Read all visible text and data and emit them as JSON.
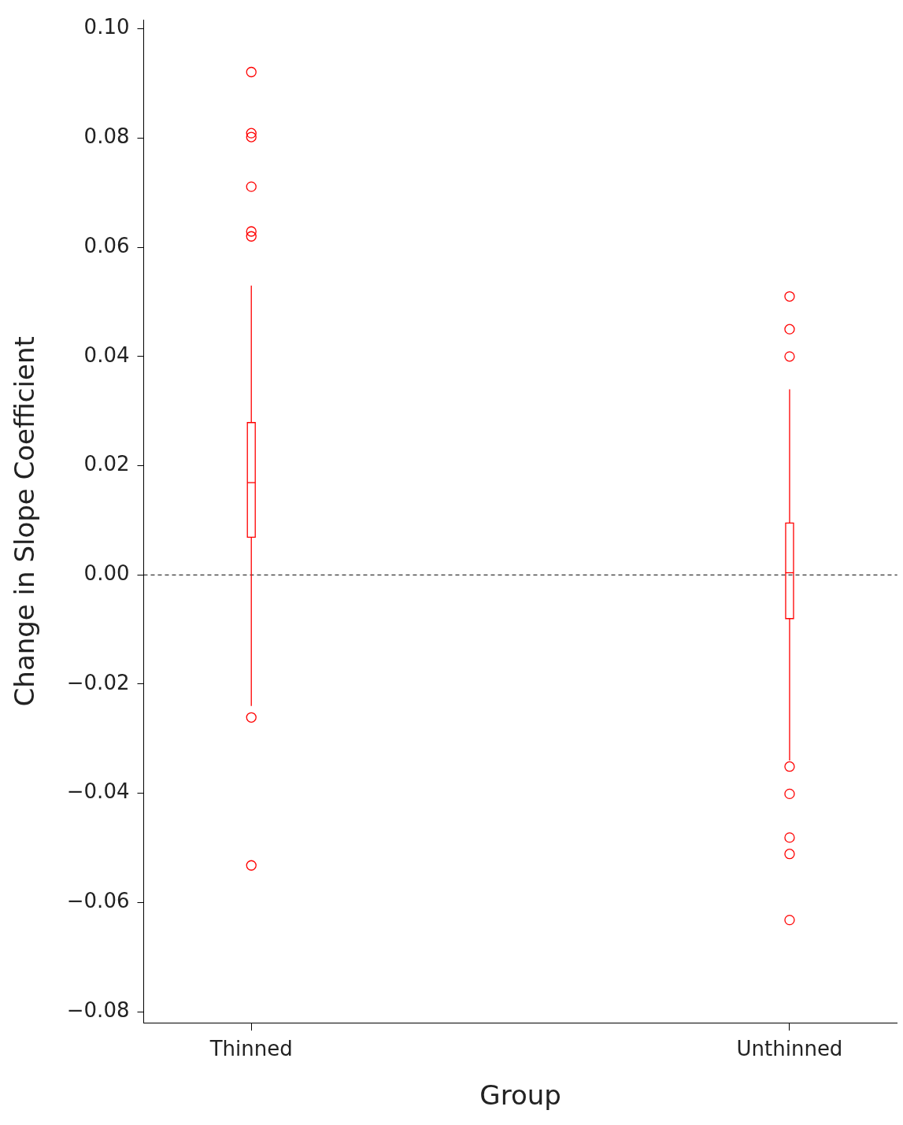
{
  "chart_data": {
    "type": "box",
    "xlabel": "Group",
    "ylabel": "Change in Slope Coefficient",
    "categories": [
      "Thinned",
      "Unthinned"
    ],
    "color": "#ff0000",
    "boxes": [
      {
        "low": -0.024,
        "q1": 0.0069,
        "median": 0.0169,
        "q3": 0.0279,
        "high": 0.053,
        "outliers": [
          0.0921,
          0.0809,
          0.0802,
          0.0711,
          0.0629,
          0.062,
          -0.0261,
          -0.0532
        ]
      },
      {
        "low": -0.034,
        "q1": -0.008,
        "median": 0.0004,
        "q3": 0.0095,
        "high": 0.034,
        "outliers": [
          0.051,
          0.045,
          0.04,
          -0.0351,
          -0.0401,
          -0.0481,
          -0.0511,
          -0.0632
        ]
      }
    ],
    "ylim": [
      -0.082,
      0.1016
    ],
    "yticks": [
      {
        "value": -0.08,
        "label": "−0.08"
      },
      {
        "value": -0.06,
        "label": "−0.06"
      },
      {
        "value": -0.04,
        "label": "−0.04"
      },
      {
        "value": -0.02,
        "label": "−0.02"
      },
      {
        "value": 0,
        "label": "0.00"
      },
      {
        "value": 0.02,
        "label": "0.02"
      },
      {
        "value": 0.04,
        "label": "0.04"
      },
      {
        "value": 0.06,
        "label": "0.06"
      },
      {
        "value": 0.08,
        "label": "0.08"
      },
      {
        "value": 0.1,
        "label": "0.10"
      }
    ],
    "ref_lines": [
      {
        "axis": "y",
        "value": 0,
        "color": "#000000",
        "line_style": "dashed"
      }
    ]
  }
}
